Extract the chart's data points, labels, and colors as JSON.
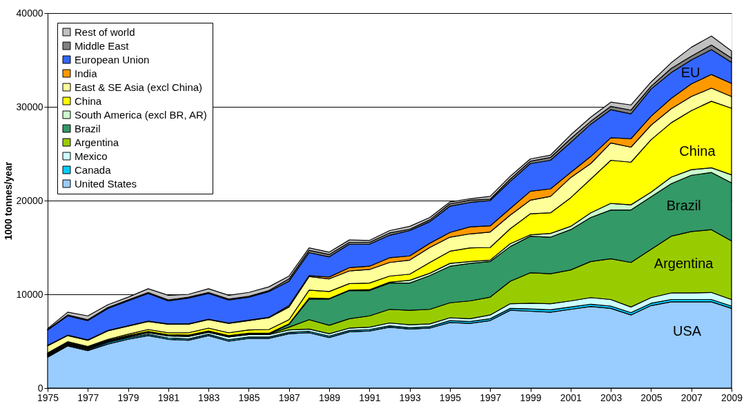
{
  "chart_data": {
    "type": "area",
    "stacked": true,
    "ylabel": "1000 tonnes/year",
    "x": [
      1975,
      1976,
      1977,
      1978,
      1979,
      1980,
      1981,
      1982,
      1983,
      1984,
      1985,
      1986,
      1987,
      1988,
      1989,
      1990,
      1991,
      1992,
      1993,
      1994,
      1995,
      1996,
      1997,
      1998,
      1999,
      2000,
      2001,
      2002,
      2003,
      2004,
      2005,
      2006,
      2007,
      2008,
      2009
    ],
    "xlim": [
      1975,
      2009
    ],
    "xticks": [
      1975,
      1977,
      1979,
      1981,
      1983,
      1985,
      1987,
      1989,
      1991,
      1993,
      1995,
      1997,
      1999,
      2001,
      2003,
      2005,
      2007,
      2009
    ],
    "ylim": [
      0,
      40000
    ],
    "yticks": [
      0,
      10000,
      20000,
      30000,
      40000
    ],
    "grid": "y",
    "legend": "top left",
    "series": [
      {
        "name": "United States",
        "color": "#99ccff",
        "values": [
          3300,
          4500,
          4000,
          4700,
          5200,
          5600,
          5200,
          5100,
          5600,
          5000,
          5300,
          5300,
          5800,
          5900,
          5400,
          6000,
          6100,
          6500,
          6300,
          6400,
          7000,
          6900,
          7200,
          8300,
          8200,
          8100,
          8400,
          8700,
          8500,
          7800,
          8800,
          9200,
          9200,
          9200,
          8500
        ]
      },
      {
        "name": "Canada",
        "color": "#00ccff",
        "values": [
          100,
          100,
          100,
          150,
          150,
          150,
          150,
          150,
          150,
          150,
          150,
          150,
          150,
          150,
          150,
          150,
          150,
          150,
          150,
          150,
          200,
          200,
          200,
          200,
          250,
          250,
          250,
          250,
          250,
          250,
          250,
          250,
          250,
          250,
          250
        ]
      },
      {
        "name": "Mexico",
        "color": "#ccffff",
        "values": [
          100,
          100,
          100,
          100,
          100,
          150,
          200,
          250,
          200,
          300,
          250,
          250,
          250,
          250,
          250,
          250,
          250,
          300,
          300,
          300,
          300,
          300,
          400,
          500,
          600,
          650,
          650,
          700,
          700,
          600,
          600,
          700,
          700,
          750,
          700
        ]
      },
      {
        "name": "Argentina",
        "color": "#99cc00",
        "values": [
          50,
          50,
          50,
          50,
          50,
          50,
          50,
          50,
          50,
          50,
          50,
          50,
          300,
          1000,
          900,
          1000,
          1200,
          1450,
          1550,
          1550,
          1600,
          1900,
          1900,
          2400,
          3250,
          3200,
          3300,
          3850,
          4350,
          4750,
          5150,
          6050,
          6550,
          6700,
          6250
        ]
      },
      {
        "name": "Brazil",
        "color": "#339966",
        "values": [
          50,
          50,
          50,
          50,
          50,
          50,
          50,
          50,
          50,
          50,
          50,
          50,
          300,
          2200,
          2800,
          3000,
          2700,
          2800,
          2900,
          3600,
          3900,
          4000,
          3800,
          3700,
          3900,
          3900,
          4300,
          4700,
          5200,
          5600,
          5600,
          5600,
          6000,
          6100,
          6200
        ]
      },
      {
        "name": "South America (excl BR, AR)",
        "color": "#ccffcc",
        "values": [
          50,
          50,
          50,
          50,
          50,
          50,
          50,
          50,
          50,
          50,
          50,
          50,
          50,
          100,
          50,
          50,
          100,
          100,
          300,
          250,
          300,
          200,
          150,
          300,
          150,
          400,
          350,
          500,
          700,
          550,
          500,
          700,
          600,
          500,
          850
        ]
      },
      {
        "name": "China",
        "color": "#ffff00",
        "values": [
          100,
          100,
          100,
          100,
          150,
          200,
          200,
          250,
          300,
          300,
          350,
          400,
          450,
          850,
          750,
          700,
          700,
          650,
          650,
          1150,
          1300,
          1450,
          1350,
          1600,
          2250,
          2200,
          3050,
          3600,
          4600,
          4550,
          5600,
          5800,
          6300,
          7100,
          7100
        ]
      },
      {
        "name": "East & SE Asia (excl China)",
        "color": "#ffff99",
        "values": [
          750,
          650,
          650,
          900,
          850,
          850,
          900,
          900,
          900,
          1000,
          1000,
          1250,
          1350,
          1450,
          1350,
          1350,
          1450,
          1450,
          1500,
          1600,
          1500,
          1500,
          1650,
          1450,
          1450,
          1750,
          2150,
          1650,
          1850,
          1600,
          1550,
          1500,
          1500,
          1400,
          1250
        ]
      },
      {
        "name": "India",
        "color": "#ff9900",
        "values": [
          50,
          50,
          50,
          50,
          50,
          50,
          50,
          50,
          50,
          50,
          50,
          50,
          150,
          100,
          200,
          350,
          350,
          500,
          450,
          450,
          500,
          750,
          650,
          700,
          950,
          800,
          550,
          750,
          550,
          900,
          950,
          1100,
          1350,
          1450,
          1400
        ]
      },
      {
        "name": "European Union",
        "color": "#3366ff",
        "values": [
          1650,
          2050,
          2050,
          2350,
          2650,
          2950,
          2450,
          2750,
          2750,
          2450,
          2450,
          2750,
          2600,
          2450,
          2150,
          2500,
          2350,
          2400,
          2700,
          2300,
          2800,
          2600,
          2700,
          2900,
          2950,
          3050,
          3200,
          3450,
          3000,
          2650,
          2900,
          2750,
          2550,
          2650,
          2250
        ]
      },
      {
        "name": "Middle East",
        "color": "#808080",
        "values": [
          50,
          100,
          100,
          100,
          100,
          100,
          100,
          100,
          100,
          100,
          100,
          100,
          250,
          250,
          250,
          200,
          200,
          250,
          150,
          200,
          250,
          250,
          150,
          250,
          250,
          300,
          400,
          300,
          350,
          400,
          300,
          450,
          400,
          500,
          450
        ]
      },
      {
        "name": "Rest of world",
        "color": "#c0c0c0",
        "values": [
          100,
          300,
          400,
          300,
          300,
          400,
          500,
          300,
          400,
          400,
          400,
          400,
          300,
          250,
          250,
          250,
          200,
          250,
          300,
          250,
          200,
          150,
          300,
          300,
          250,
          250,
          400,
          450,
          450,
          550,
          450,
          600,
          950,
          950,
          750
        ]
      }
    ],
    "annotations": [
      "EU",
      "China",
      "Brazil",
      "Argentina",
      "USA"
    ]
  }
}
